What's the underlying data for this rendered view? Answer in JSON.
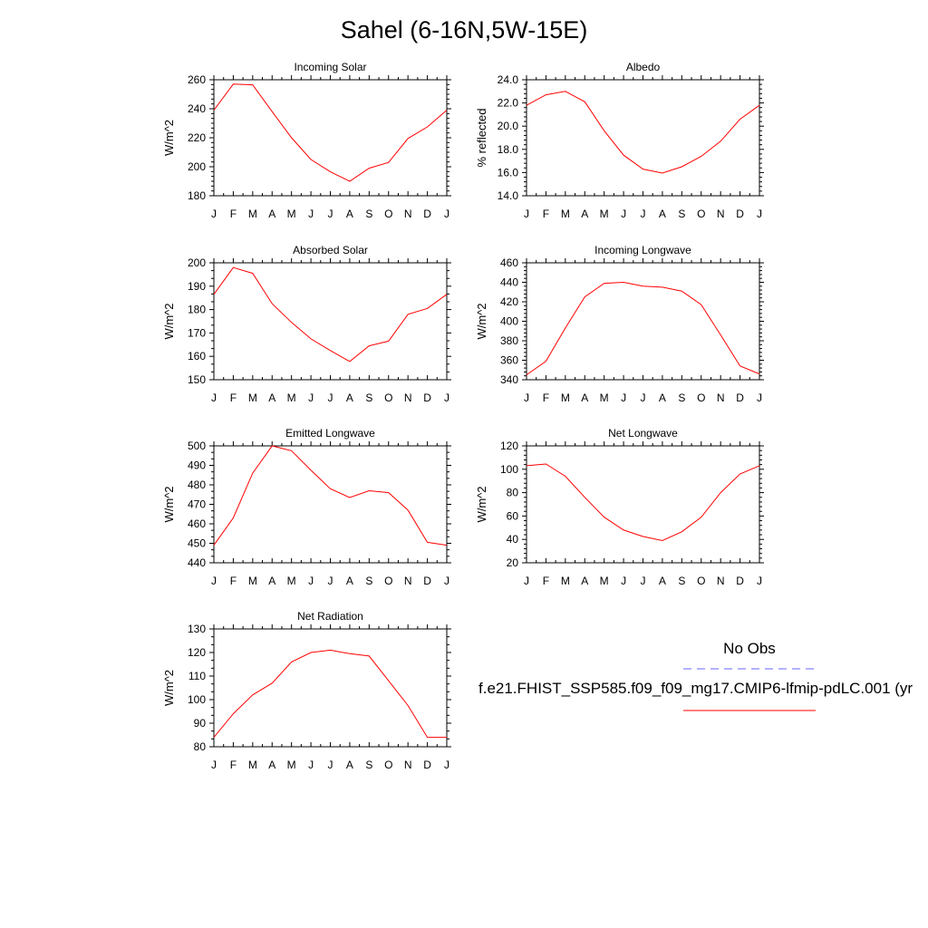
{
  "title": "Sahel (6-16N,5W-15E)",
  "colors": {
    "model_line": "#ff0000",
    "obs_line": "#6666ff",
    "axis": "#000000"
  },
  "months": [
    "J",
    "F",
    "M",
    "A",
    "M",
    "J",
    "J",
    "A",
    "S",
    "O",
    "N",
    "D",
    "J"
  ],
  "legend": {
    "obs_label": "No Obs",
    "model_label": "f.e21.FHIST_SSP585.f09_f09_mg17.CMIP6-lfmip-pdLC.001 (yr"
  },
  "chart_data": [
    {
      "type": "line",
      "title": "Incoming Solar",
      "ylabel": "W/m^2",
      "ylim": [
        180,
        260
      ],
      "yticks": [
        "180",
        "200",
        "220",
        "240",
        "260"
      ],
      "yminor": 5,
      "x": [
        "J",
        "F",
        "M",
        "A",
        "M",
        "J",
        "J",
        "A",
        "S",
        "O",
        "N",
        "D",
        "J"
      ],
      "values": [
        239,
        257,
        256.5,
        238,
        220,
        205,
        196.5,
        190,
        199,
        203,
        219.5,
        227.5,
        239
      ]
    },
    {
      "type": "line",
      "title": "Albedo",
      "ylabel": "% reflected",
      "ylim": [
        14,
        24
      ],
      "yticks": [
        "14.0",
        "16.0",
        "18.0",
        "20.0",
        "22.0",
        "24.0"
      ],
      "yminor": 4,
      "x": [
        "J",
        "F",
        "M",
        "A",
        "M",
        "J",
        "J",
        "A",
        "S",
        "O",
        "N",
        "D",
        "J"
      ],
      "values": [
        21.8,
        22.7,
        23.0,
        22.1,
        19.6,
        17.5,
        16.3,
        15.95,
        16.5,
        17.4,
        18.7,
        20.6,
        21.8
      ]
    },
    {
      "type": "line",
      "title": "Absorbed Solar",
      "ylabel": "W/m^2",
      "ylim": [
        150,
        200
      ],
      "yticks": [
        "150",
        "160",
        "170",
        "180",
        "190",
        "200"
      ],
      "yminor": 2,
      "x": [
        "J",
        "F",
        "M",
        "A",
        "M",
        "J",
        "J",
        "A",
        "S",
        "O",
        "N",
        "D",
        "J"
      ],
      "values": [
        186.5,
        198,
        195.5,
        182.5,
        174.5,
        167.5,
        162.5,
        157.8,
        164.5,
        166.5,
        178,
        180.5,
        186.5
      ]
    },
    {
      "type": "line",
      "title": "Incoming Longwave",
      "ylabel": "W/m^2",
      "ylim": [
        340,
        460
      ],
      "yticks": [
        "340",
        "360",
        "380",
        "400",
        "420",
        "440",
        "460"
      ],
      "yminor": 4,
      "x": [
        "J",
        "F",
        "M",
        "A",
        "M",
        "J",
        "J",
        "A",
        "S",
        "O",
        "N",
        "D",
        "J"
      ],
      "values": [
        345,
        359,
        393,
        425,
        439,
        440,
        436,
        435,
        431,
        417,
        386,
        354,
        346
      ]
    },
    {
      "type": "line",
      "title": "Emitted Longwave",
      "ylabel": "W/m^2",
      "ylim": [
        440,
        500
      ],
      "yticks": [
        "440",
        "450",
        "460",
        "470",
        "480",
        "490",
        "500"
      ],
      "yminor": 2,
      "x": [
        "J",
        "F",
        "M",
        "A",
        "M",
        "J",
        "J",
        "A",
        "S",
        "O",
        "N",
        "D",
        "J"
      ],
      "values": [
        449,
        463,
        486,
        500,
        497.5,
        487.5,
        478,
        473.5,
        477,
        476,
        467,
        450.5,
        449
      ]
    },
    {
      "type": "line",
      "title": "Net Longwave",
      "ylabel": "W/m^2",
      "ylim": [
        20,
        120
      ],
      "yticks": [
        "20",
        "40",
        "60",
        "80",
        "100",
        "120"
      ],
      "yminor": 4,
      "x": [
        "J",
        "F",
        "M",
        "A",
        "M",
        "J",
        "J",
        "A",
        "S",
        "O",
        "N",
        "D",
        "J"
      ],
      "values": [
        103,
        104.5,
        94,
        76,
        59,
        48,
        42.5,
        39,
        46.5,
        59,
        80,
        96,
        103
      ]
    },
    {
      "type": "line",
      "title": "Net Radiation",
      "ylabel": "W/m^2",
      "ylim": [
        80,
        130
      ],
      "yticks": [
        "80",
        "90",
        "100",
        "110",
        "120",
        "130"
      ],
      "yminor": 2,
      "x": [
        "J",
        "F",
        "M",
        "A",
        "M",
        "J",
        "J",
        "A",
        "S",
        "O",
        "N",
        "D",
        "J"
      ],
      "values": [
        84,
        94,
        102,
        107,
        116,
        120,
        121,
        119.5,
        118.5,
        108,
        97.5,
        84,
        84
      ]
    }
  ]
}
